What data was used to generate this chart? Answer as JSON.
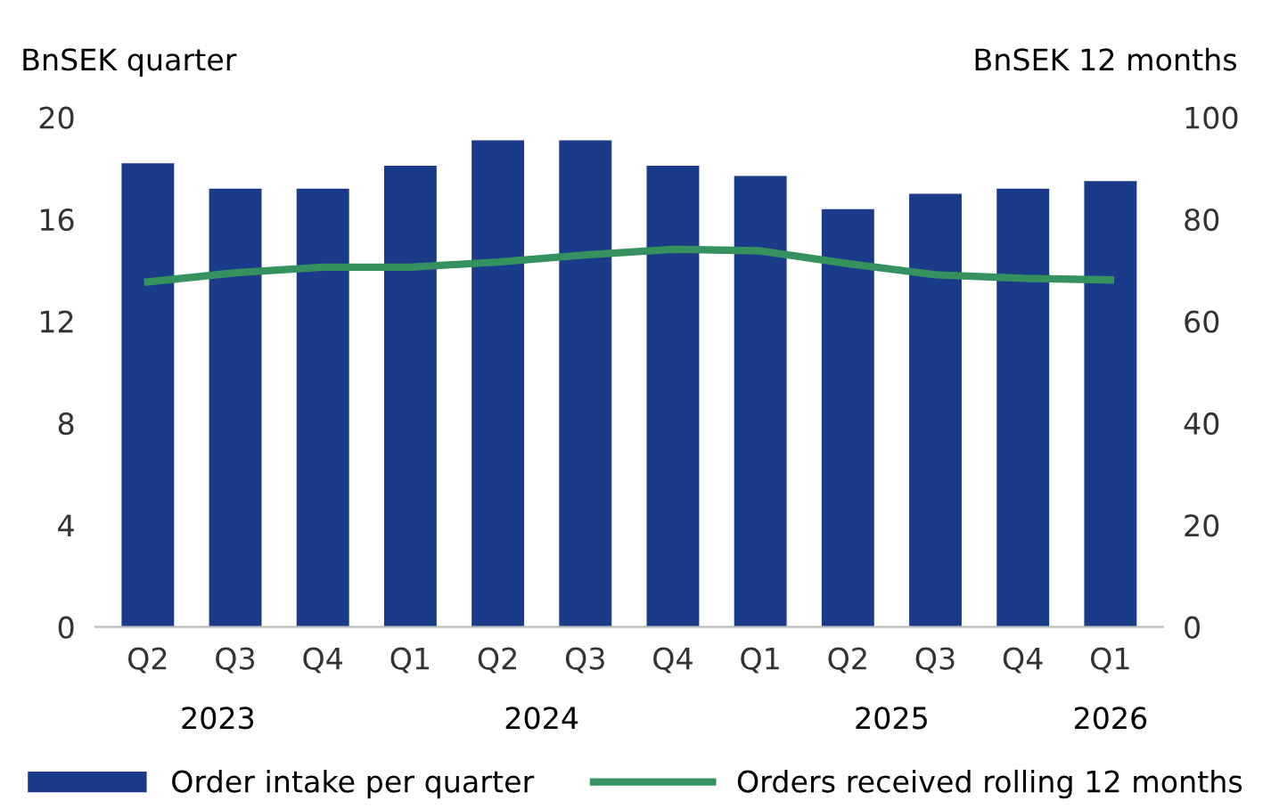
{
  "chart_data": {
    "type": "bar",
    "ylabel": "BnSEK quarter",
    "y2label": "BnSEK 12 months",
    "categories": [
      "Q2",
      "Q3",
      "Q4",
      "Q1",
      "Q2",
      "Q3",
      "Q4",
      "Q1",
      "Q2",
      "Q3",
      "Q4",
      "Q1"
    ],
    "series": [
      {
        "name": "Order intake per quarter",
        "color": "#1a3a8a",
        "values": [
          18.2,
          17.2,
          17.2,
          18.1,
          19.1,
          19.1,
          18.1,
          17.7,
          16.4,
          17.0,
          17.2,
          17.5
        ]
      },
      {
        "name": "Orders received rolling 12 months",
        "type": "line",
        "axis": "y2",
        "color": "#35925e",
        "values": [
          67.7,
          69.5,
          70.6,
          70.6,
          71.6,
          73.0,
          74.1,
          73.8,
          71.3,
          69.1,
          68.4,
          68.1
        ]
      }
    ],
    "ylim": [
      0,
      20
    ],
    "yticks": [
      0,
      4,
      8,
      12,
      16,
      20
    ],
    "y2lim": [
      0,
      100
    ],
    "y2ticks": [
      0,
      20,
      40,
      60,
      80,
      100
    ],
    "annotations": [
      "2023",
      "2024",
      "2025",
      "2026"
    ],
    "legend": "bottom",
    "grid": false
  }
}
